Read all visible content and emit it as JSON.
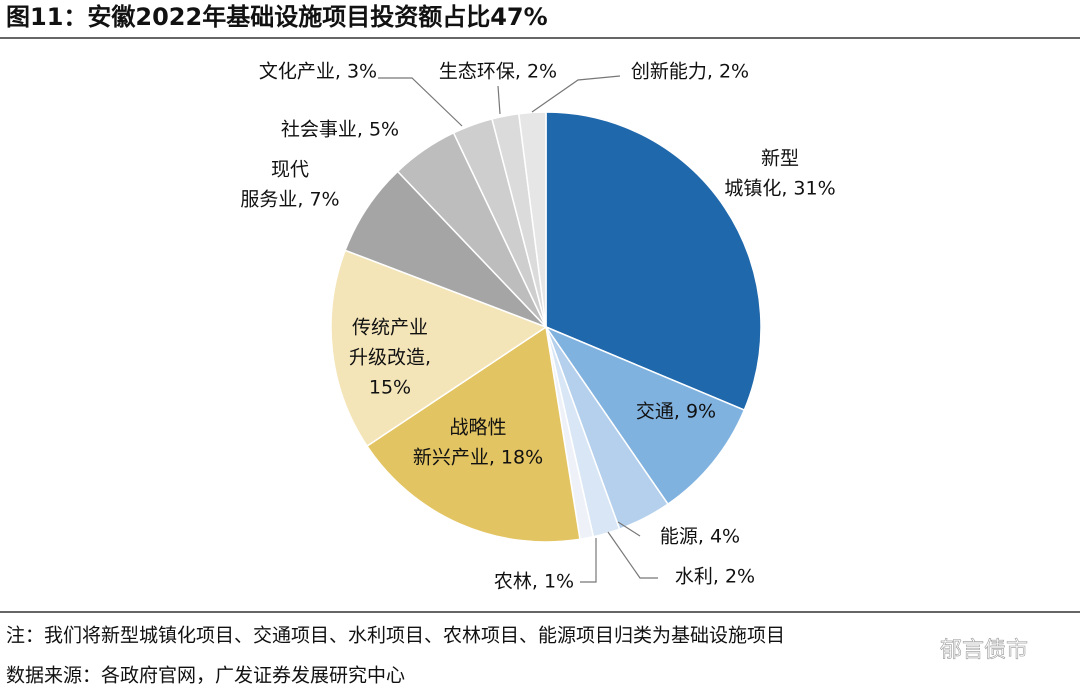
{
  "chart_data": {
    "type": "pie",
    "title": "图11：安徽2022年基础设施项目投资额占比47%",
    "labels": [
      [
        "新型",
        "城镇化, 31%"
      ],
      [
        "交通, 9%"
      ],
      [
        "能源, 4%"
      ],
      [
        "水利, 2%"
      ],
      [
        "农林, 1%"
      ],
      [
        "战略性",
        "新兴产业, 18%"
      ],
      [
        "传统产业",
        "升级改造,",
        "15%"
      ],
      [
        "现代",
        "服务业, 7%"
      ],
      [
        "社会事业, 5%"
      ],
      [
        "文化产业, 3%"
      ],
      [
        "生态环保, 2%"
      ],
      [
        "创新能力, 2%"
      ]
    ],
    "values": [
      31,
      9,
      4,
      2,
      1,
      18,
      15,
      7,
      5,
      3,
      2,
      2
    ],
    "colors": [
      "#1f68ac",
      "#80b2e0",
      "#b5d0ec",
      "#d8e6f5",
      "#eef2f8",
      "#e3c462",
      "#f4e5b9",
      "#a5a5a5",
      "#bdbdbd",
      "#cecece",
      "#dbdbdb",
      "#e6e6e6"
    ],
    "note": "注：我们将新型城镇化项目、交通项目、水利项目、农林项目、能源项目归类为基础设施项目",
    "source": "数据来源：各政府官网，广发证券发展研究中心",
    "watermark": "郁言债市"
  }
}
